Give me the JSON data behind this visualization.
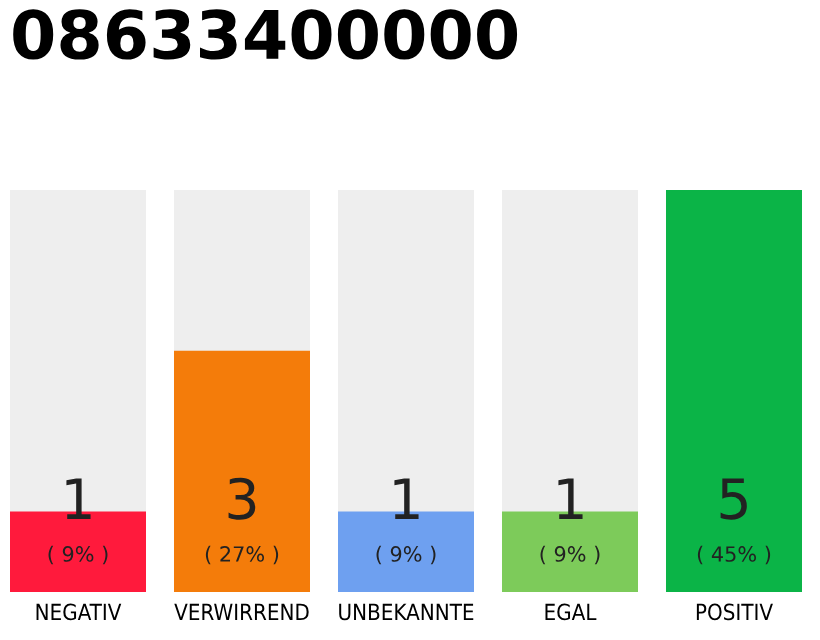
{
  "chart_data": {
    "type": "bar",
    "title": "08633400000",
    "categories": [
      "NEGATIV",
      "VERWIRREND",
      "UNBEKANNTE",
      "EGAL",
      "POSITIV"
    ],
    "values": [
      1,
      3,
      1,
      1,
      5
    ],
    "colors": [
      "#ff1a3c",
      "#f47c0a",
      "#6ea0f0",
      "#7dcb5a",
      "#0bb447"
    ],
    "data_labels": true,
    "annotations": [
      "( 9% )",
      "( 27% )",
      "( 9% )",
      "( 9% )",
      "( 45% )"
    ],
    "grid": false,
    "legend": false
  }
}
